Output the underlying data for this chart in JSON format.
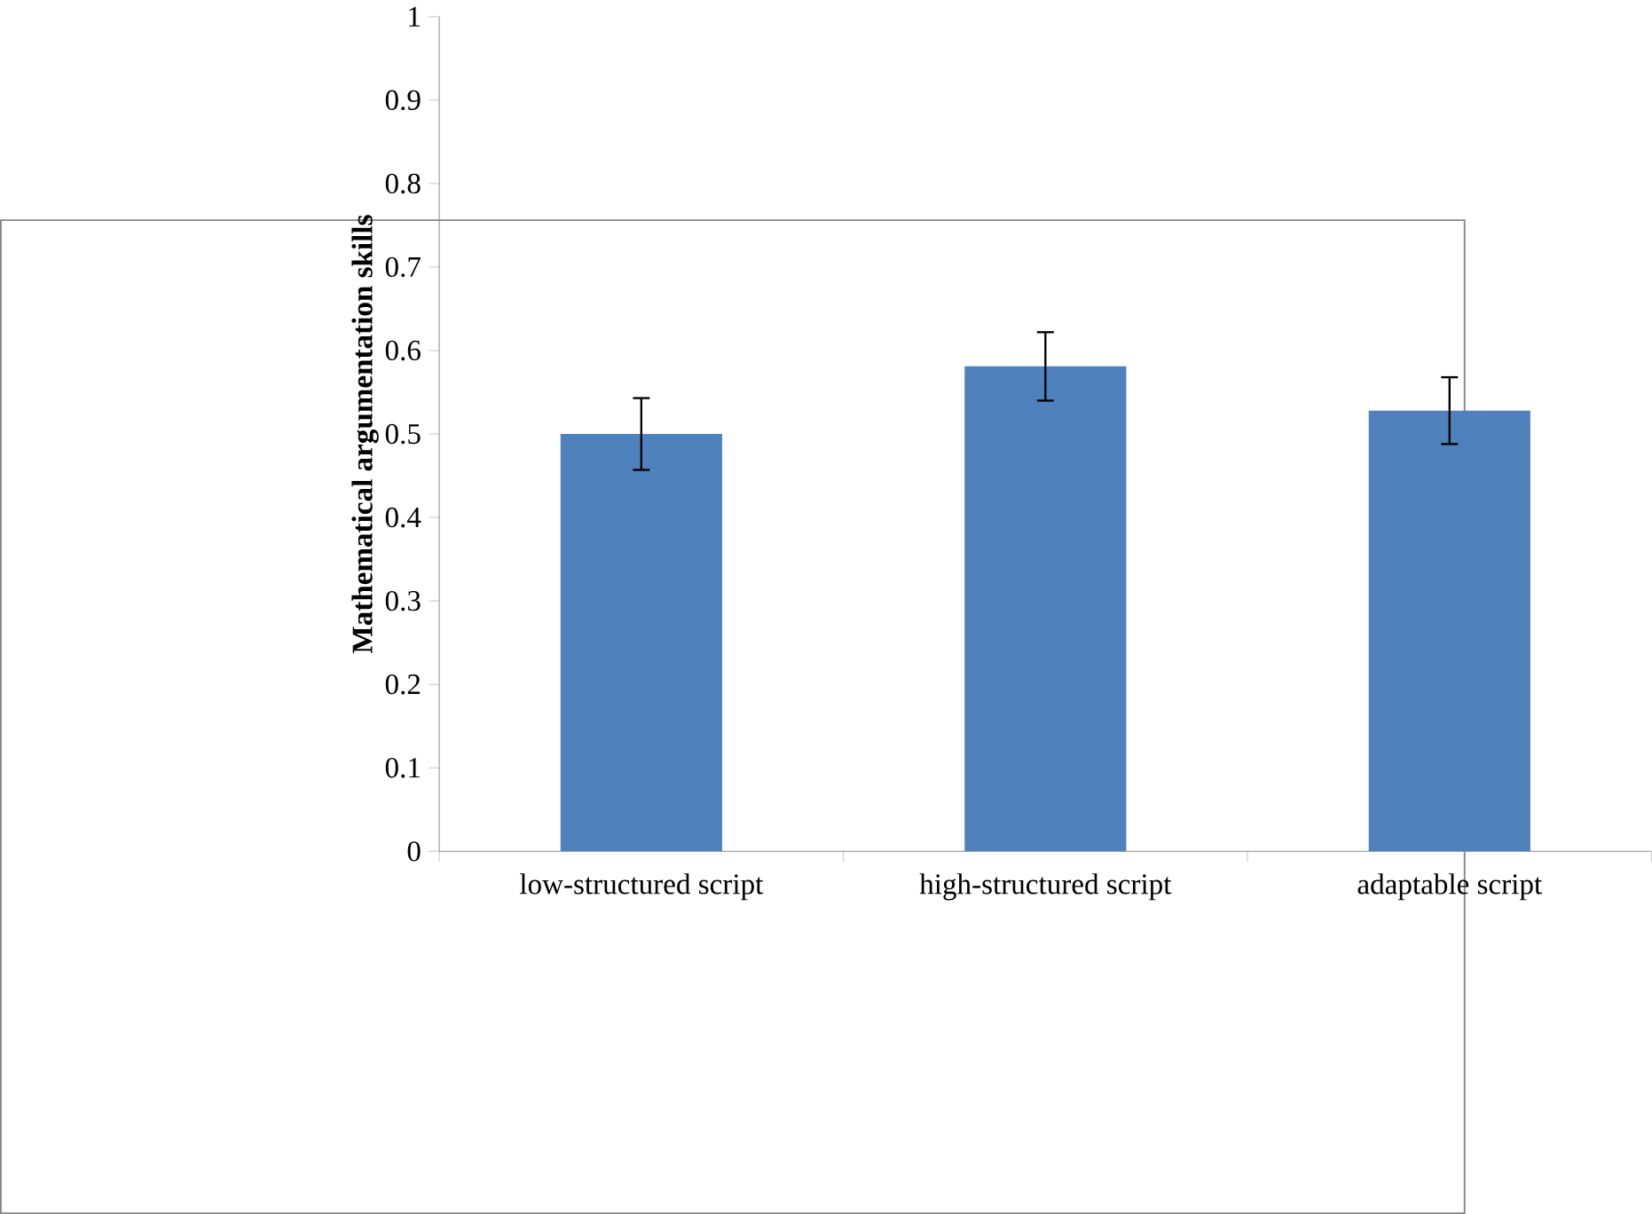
{
  "chart_data": {
    "type": "bar",
    "ylabel": "Mathematical argumentation skills",
    "categories": [
      "low-structured script",
      "high-structured script",
      "adaptable script"
    ],
    "values": [
      0.5,
      0.581,
      0.528
    ],
    "errors": [
      0.043,
      0.041,
      0.04
    ],
    "color": "#4f81bd",
    "ylim": [
      0,
      1
    ],
    "yticks": [
      0,
      0.1,
      0.2,
      0.3,
      0.4,
      0.5,
      0.6,
      0.7,
      0.8,
      0.9,
      1
    ],
    "grid": false
  }
}
